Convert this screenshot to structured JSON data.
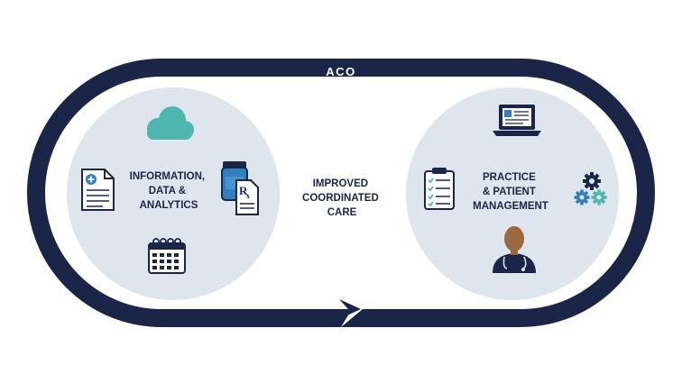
{
  "loop": {
    "label": "ACO"
  },
  "left_circle": {
    "lines": [
      "INFORMATION,",
      "DATA &",
      "ANALYTICS"
    ]
  },
  "center": {
    "lines": [
      "IMPROVED",
      "COORDINATED",
      "CARE"
    ]
  },
  "right_circle": {
    "lines": [
      "PRACTICE",
      "& PATIENT",
      "MANAGEMENT"
    ]
  },
  "icons": [
    "cloud-icon",
    "medical-document-icon",
    "prescription-bottle-icon",
    "calendar-icon",
    "laptop-icon",
    "clipboard-checklist-icon",
    "gears-icon",
    "doctor-icon"
  ],
  "colors": {
    "navy": "#1b2547",
    "circle_fill": "#dfe5ed",
    "teal": "#4eb6ae",
    "blue": "#2f7fc1",
    "paper": "#ffffff",
    "skin": "#9a6a3e"
  }
}
